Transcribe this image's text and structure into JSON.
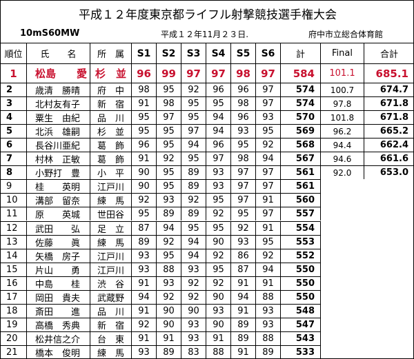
{
  "title": "平成１２年度東京都ライフル射撃競技選手権大会",
  "event": "10mS60MW",
  "date": "平成１２年11月２３日.",
  "venue": "府中市立総合体育館",
  "table": {
    "header": [
      "順位",
      "氏　　名",
      "所　属",
      "S1",
      "S2",
      "S3",
      "S4",
      "S5",
      "S6",
      "計",
      "Final",
      "合計"
    ],
    "rows": [
      [
        "1",
        "松島　　愛",
        "杉　並",
        "96",
        "99",
        "97",
        "97",
        "98",
        "97",
        "584",
        "101.1",
        "685.1"
      ],
      [
        "2",
        "歳清　勝晴",
        "府　中",
        "98",
        "95",
        "92",
        "96",
        "96",
        "97",
        "574",
        "100.7",
        "674.7"
      ],
      [
        "3",
        "北村友有子",
        "新　宿",
        "91",
        "98",
        "95",
        "95",
        "98",
        "97",
        "574",
        "97.8",
        "671.8"
      ],
      [
        "4",
        "粟生　由紀",
        "品　川",
        "95",
        "97",
        "95",
        "94",
        "96",
        "93",
        "570",
        "101.8",
        "671.8"
      ],
      [
        "5",
        "北浜　雄嗣",
        "杉　並",
        "95",
        "95",
        "97",
        "94",
        "93",
        "95",
        "569",
        "96.2",
        "665.2"
      ],
      [
        "6",
        "長谷川亜紀",
        "葛　飾",
        "96",
        "95",
        "94",
        "96",
        "95",
        "92",
        "568",
        "94.4",
        "662.4"
      ],
      [
        "7",
        "村林　正敏",
        "葛　飾",
        "91",
        "92",
        "95",
        "97",
        "98",
        "94",
        "567",
        "94.6",
        "661.6"
      ],
      [
        "8",
        "小野打　豊",
        "小　平",
        "90",
        "95",
        "89",
        "93",
        "97",
        "97",
        "561",
        "92.0",
        "653.0"
      ],
      [
        "9",
        "桂　　英明",
        "江戸川",
        "90",
        "95",
        "89",
        "93",
        "97",
        "97",
        "561"
      ],
      [
        "10",
        "溝部　留奈",
        "練　馬",
        "92",
        "93",
        "92",
        "95",
        "97",
        "91",
        "560"
      ],
      [
        "11",
        "原　　英城",
        "世田谷",
        "95",
        "89",
        "89",
        "92",
        "95",
        "97",
        "557"
      ],
      [
        "12",
        "武田　　弘",
        "足　立",
        "87",
        "94",
        "95",
        "95",
        "92",
        "91",
        "554"
      ],
      [
        "13",
        "佐藤　　眞",
        "練　馬",
        "89",
        "92",
        "94",
        "90",
        "93",
        "95",
        "553"
      ],
      [
        "14",
        "矢橋　房子",
        "江戸川",
        "93",
        "95",
        "94",
        "92",
        "86",
        "92",
        "552"
      ],
      [
        "15",
        "片山　　勇",
        "江戸川",
        "93",
        "88",
        "93",
        "95",
        "87",
        "94",
        "550"
      ],
      [
        "16",
        "中島　　桂",
        "渋　谷",
        "91",
        "93",
        "92",
        "92",
        "91",
        "91",
        "550"
      ],
      [
        "17",
        "岡田　貴夫",
        "武蔵野",
        "94",
        "92",
        "92",
        "90",
        "94",
        "88",
        "550"
      ],
      [
        "18",
        "斎田　　進",
        "品　川",
        "91",
        "90",
        "90",
        "93",
        "91",
        "93",
        "548"
      ],
      [
        "19",
        "高橋　秀典",
        "新　宿",
        "92",
        "90",
        "93",
        "90",
        "89",
        "93",
        "547"
      ],
      [
        "20",
        "松井信之介",
        "台　東",
        "91",
        "91",
        "93",
        "91",
        "89",
        "88",
        "543"
      ],
      [
        "21",
        "橋本　俊明",
        "練　馬",
        "93",
        "89",
        "83",
        "88",
        "91",
        "89",
        "533"
      ]
    ]
  }
}
